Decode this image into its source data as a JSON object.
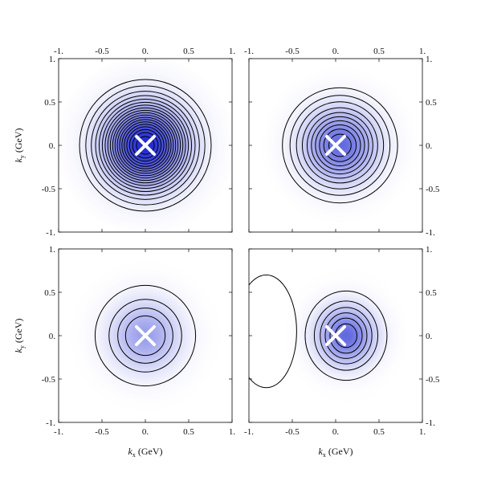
{
  "chart_data": {
    "type": "contour",
    "panels": [
      {
        "position": "top-left",
        "x_range": [
          -1,
          1
        ],
        "y_range": [
          -1,
          1
        ],
        "peak": [
          0,
          0
        ],
        "width_x": 0.32,
        "width_y": 0.32,
        "contour_levels": [
          0.06,
          0.1,
          0.15,
          0.2,
          0.25,
          0.3,
          0.35,
          0.4,
          0.45,
          0.5,
          0.55,
          0.6,
          0.65,
          0.7,
          0.75,
          0.8,
          0.85,
          0.9,
          0.95
        ],
        "color_intensity": 1.0,
        "marker": [
          0,
          0
        ],
        "extra_contours": []
      },
      {
        "position": "top-right",
        "x_range": [
          -1,
          1
        ],
        "y_range": [
          -1,
          1
        ],
        "peak": [
          0.05,
          0
        ],
        "width_x": 0.28,
        "width_y": 0.28,
        "contour_levels": [
          0.06,
          0.12,
          0.2,
          0.3,
          0.4,
          0.5,
          0.6,
          0.7,
          0.8,
          0.9
        ],
        "color_intensity": 0.7,
        "marker": [
          0,
          0
        ],
        "extra_contours": []
      },
      {
        "position": "bottom-left",
        "x_range": [
          -1,
          1
        ],
        "y_range": [
          -1,
          1
        ],
        "peak": [
          0,
          0
        ],
        "width_x": 0.27,
        "width_y": 0.27,
        "contour_levels": [
          0.1,
          0.3,
          0.5,
          0.7
        ],
        "color_intensity": 0.45,
        "marker": [
          0,
          0
        ],
        "extra_contours": []
      },
      {
        "position": "bottom-right",
        "x_range": [
          -1,
          1
        ],
        "y_range": [
          -1,
          1
        ],
        "peak": [
          0.12,
          0
        ],
        "width_x": 0.22,
        "width_y": 0.24,
        "contour_levels": [
          0.1,
          0.25,
          0.4,
          0.55,
          0.7,
          0.85
        ],
        "color_intensity": 0.7,
        "marker": [
          0,
          0
        ],
        "extra_contours": [
          {
            "center": [
              -0.8,
              0.05
            ],
            "radius_x": 0.35,
            "radius_y": 0.65
          }
        ]
      }
    ],
    "x_ticks": [
      "-1.",
      "-0.5",
      "0.",
      "0.5",
      "1."
    ],
    "y_ticks": [
      "1.",
      "0.5",
      "0.",
      "-0.5",
      "-1."
    ],
    "xlabel": {
      "italic": "k",
      "sub": "x",
      "unit": " (GeV)"
    },
    "ylabel": {
      "italic": "k",
      "sub": "y",
      "unit": " (GeV)"
    },
    "colors": {
      "density": "#1e28d2",
      "contour": "#000000",
      "marker": "#ffffff"
    }
  }
}
